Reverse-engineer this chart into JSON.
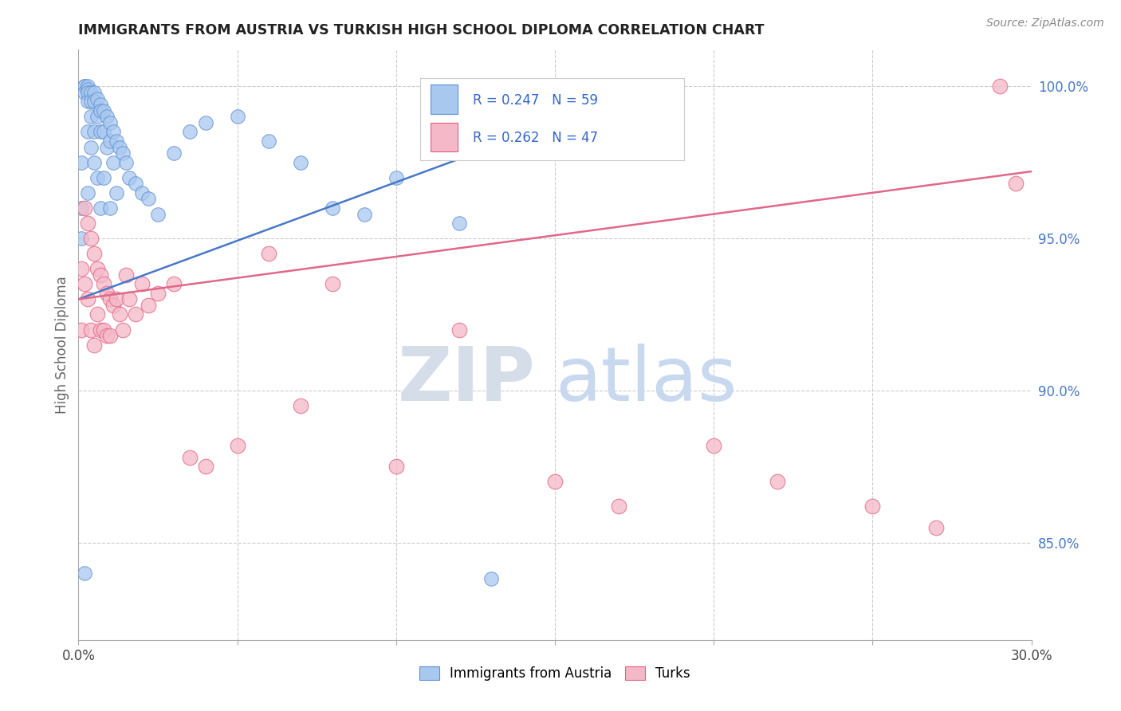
{
  "title": "IMMIGRANTS FROM AUSTRIA VS TURKISH HIGH SCHOOL DIPLOMA CORRELATION CHART",
  "source": "Source: ZipAtlas.com",
  "ylabel": "High School Diploma",
  "ylabel_right_labels": [
    "100.0%",
    "95.0%",
    "90.0%",
    "85.0%"
  ],
  "ylabel_right_values": [
    1.0,
    0.95,
    0.9,
    0.85
  ],
  "xmin": 0.0,
  "xmax": 0.3,
  "ymin": 0.818,
  "ymax": 1.012,
  "watermark_zip": "ZIP",
  "watermark_atlas": "atlas",
  "legend_label1": "Immigrants from Austria",
  "legend_label2": "Turks",
  "r1": 0.247,
  "n1": 59,
  "r2": 0.262,
  "n2": 47,
  "color_blue": "#a8c8f0",
  "color_pink": "#f5b8c8",
  "edge_blue": "#6090d0",
  "edge_pink": "#e06080",
  "line_blue": "#4878c8",
  "line_pink": "#e06888",
  "austria_x": [
    0.001,
    0.001,
    0.001,
    0.002,
    0.002,
    0.002,
    0.002,
    0.003,
    0.003,
    0.003,
    0.003,
    0.003,
    0.003,
    0.004,
    0.004,
    0.004,
    0.004,
    0.005,
    0.005,
    0.005,
    0.005,
    0.006,
    0.006,
    0.006,
    0.007,
    0.007,
    0.007,
    0.007,
    0.008,
    0.008,
    0.008,
    0.009,
    0.009,
    0.01,
    0.01,
    0.01,
    0.011,
    0.011,
    0.012,
    0.012,
    0.013,
    0.014,
    0.015,
    0.016,
    0.018,
    0.02,
    0.022,
    0.025,
    0.03,
    0.035,
    0.04,
    0.05,
    0.06,
    0.07,
    0.08,
    0.09,
    0.1,
    0.12,
    0.13
  ],
  "austria_y": [
    0.975,
    0.96,
    0.95,
    1.0,
    1.0,
    0.998,
    0.84,
    1.0,
    0.999,
    0.998,
    0.995,
    0.985,
    0.965,
    0.998,
    0.995,
    0.99,
    0.98,
    0.998,
    0.995,
    0.985,
    0.975,
    0.996,
    0.99,
    0.97,
    0.994,
    0.992,
    0.985,
    0.96,
    0.992,
    0.985,
    0.97,
    0.99,
    0.98,
    0.988,
    0.982,
    0.96,
    0.985,
    0.975,
    0.982,
    0.965,
    0.98,
    0.978,
    0.975,
    0.97,
    0.968,
    0.965,
    0.963,
    0.958,
    0.978,
    0.985,
    0.988,
    0.99,
    0.982,
    0.975,
    0.96,
    0.958,
    0.97,
    0.955,
    0.838
  ],
  "turks_x": [
    0.001,
    0.001,
    0.002,
    0.002,
    0.003,
    0.003,
    0.004,
    0.004,
    0.005,
    0.005,
    0.006,
    0.006,
    0.007,
    0.007,
    0.008,
    0.008,
    0.009,
    0.009,
    0.01,
    0.01,
    0.011,
    0.012,
    0.013,
    0.014,
    0.015,
    0.016,
    0.018,
    0.02,
    0.022,
    0.025,
    0.03,
    0.035,
    0.04,
    0.05,
    0.06,
    0.07,
    0.08,
    0.1,
    0.12,
    0.15,
    0.17,
    0.2,
    0.22,
    0.25,
    0.27,
    0.29,
    0.295
  ],
  "turks_y": [
    0.94,
    0.92,
    0.96,
    0.935,
    0.955,
    0.93,
    0.95,
    0.92,
    0.945,
    0.915,
    0.94,
    0.925,
    0.938,
    0.92,
    0.935,
    0.92,
    0.932,
    0.918,
    0.93,
    0.918,
    0.928,
    0.93,
    0.925,
    0.92,
    0.938,
    0.93,
    0.925,
    0.935,
    0.928,
    0.932,
    0.935,
    0.878,
    0.875,
    0.882,
    0.945,
    0.895,
    0.935,
    0.875,
    0.92,
    0.87,
    0.862,
    0.882,
    0.87,
    0.862,
    0.855,
    1.0,
    0.968
  ],
  "blue_line_x": [
    0.0,
    0.13
  ],
  "blue_line_y": [
    0.93,
    0.98
  ],
  "pink_line_x": [
    0.0,
    0.3
  ],
  "pink_line_y": [
    0.93,
    0.972
  ]
}
